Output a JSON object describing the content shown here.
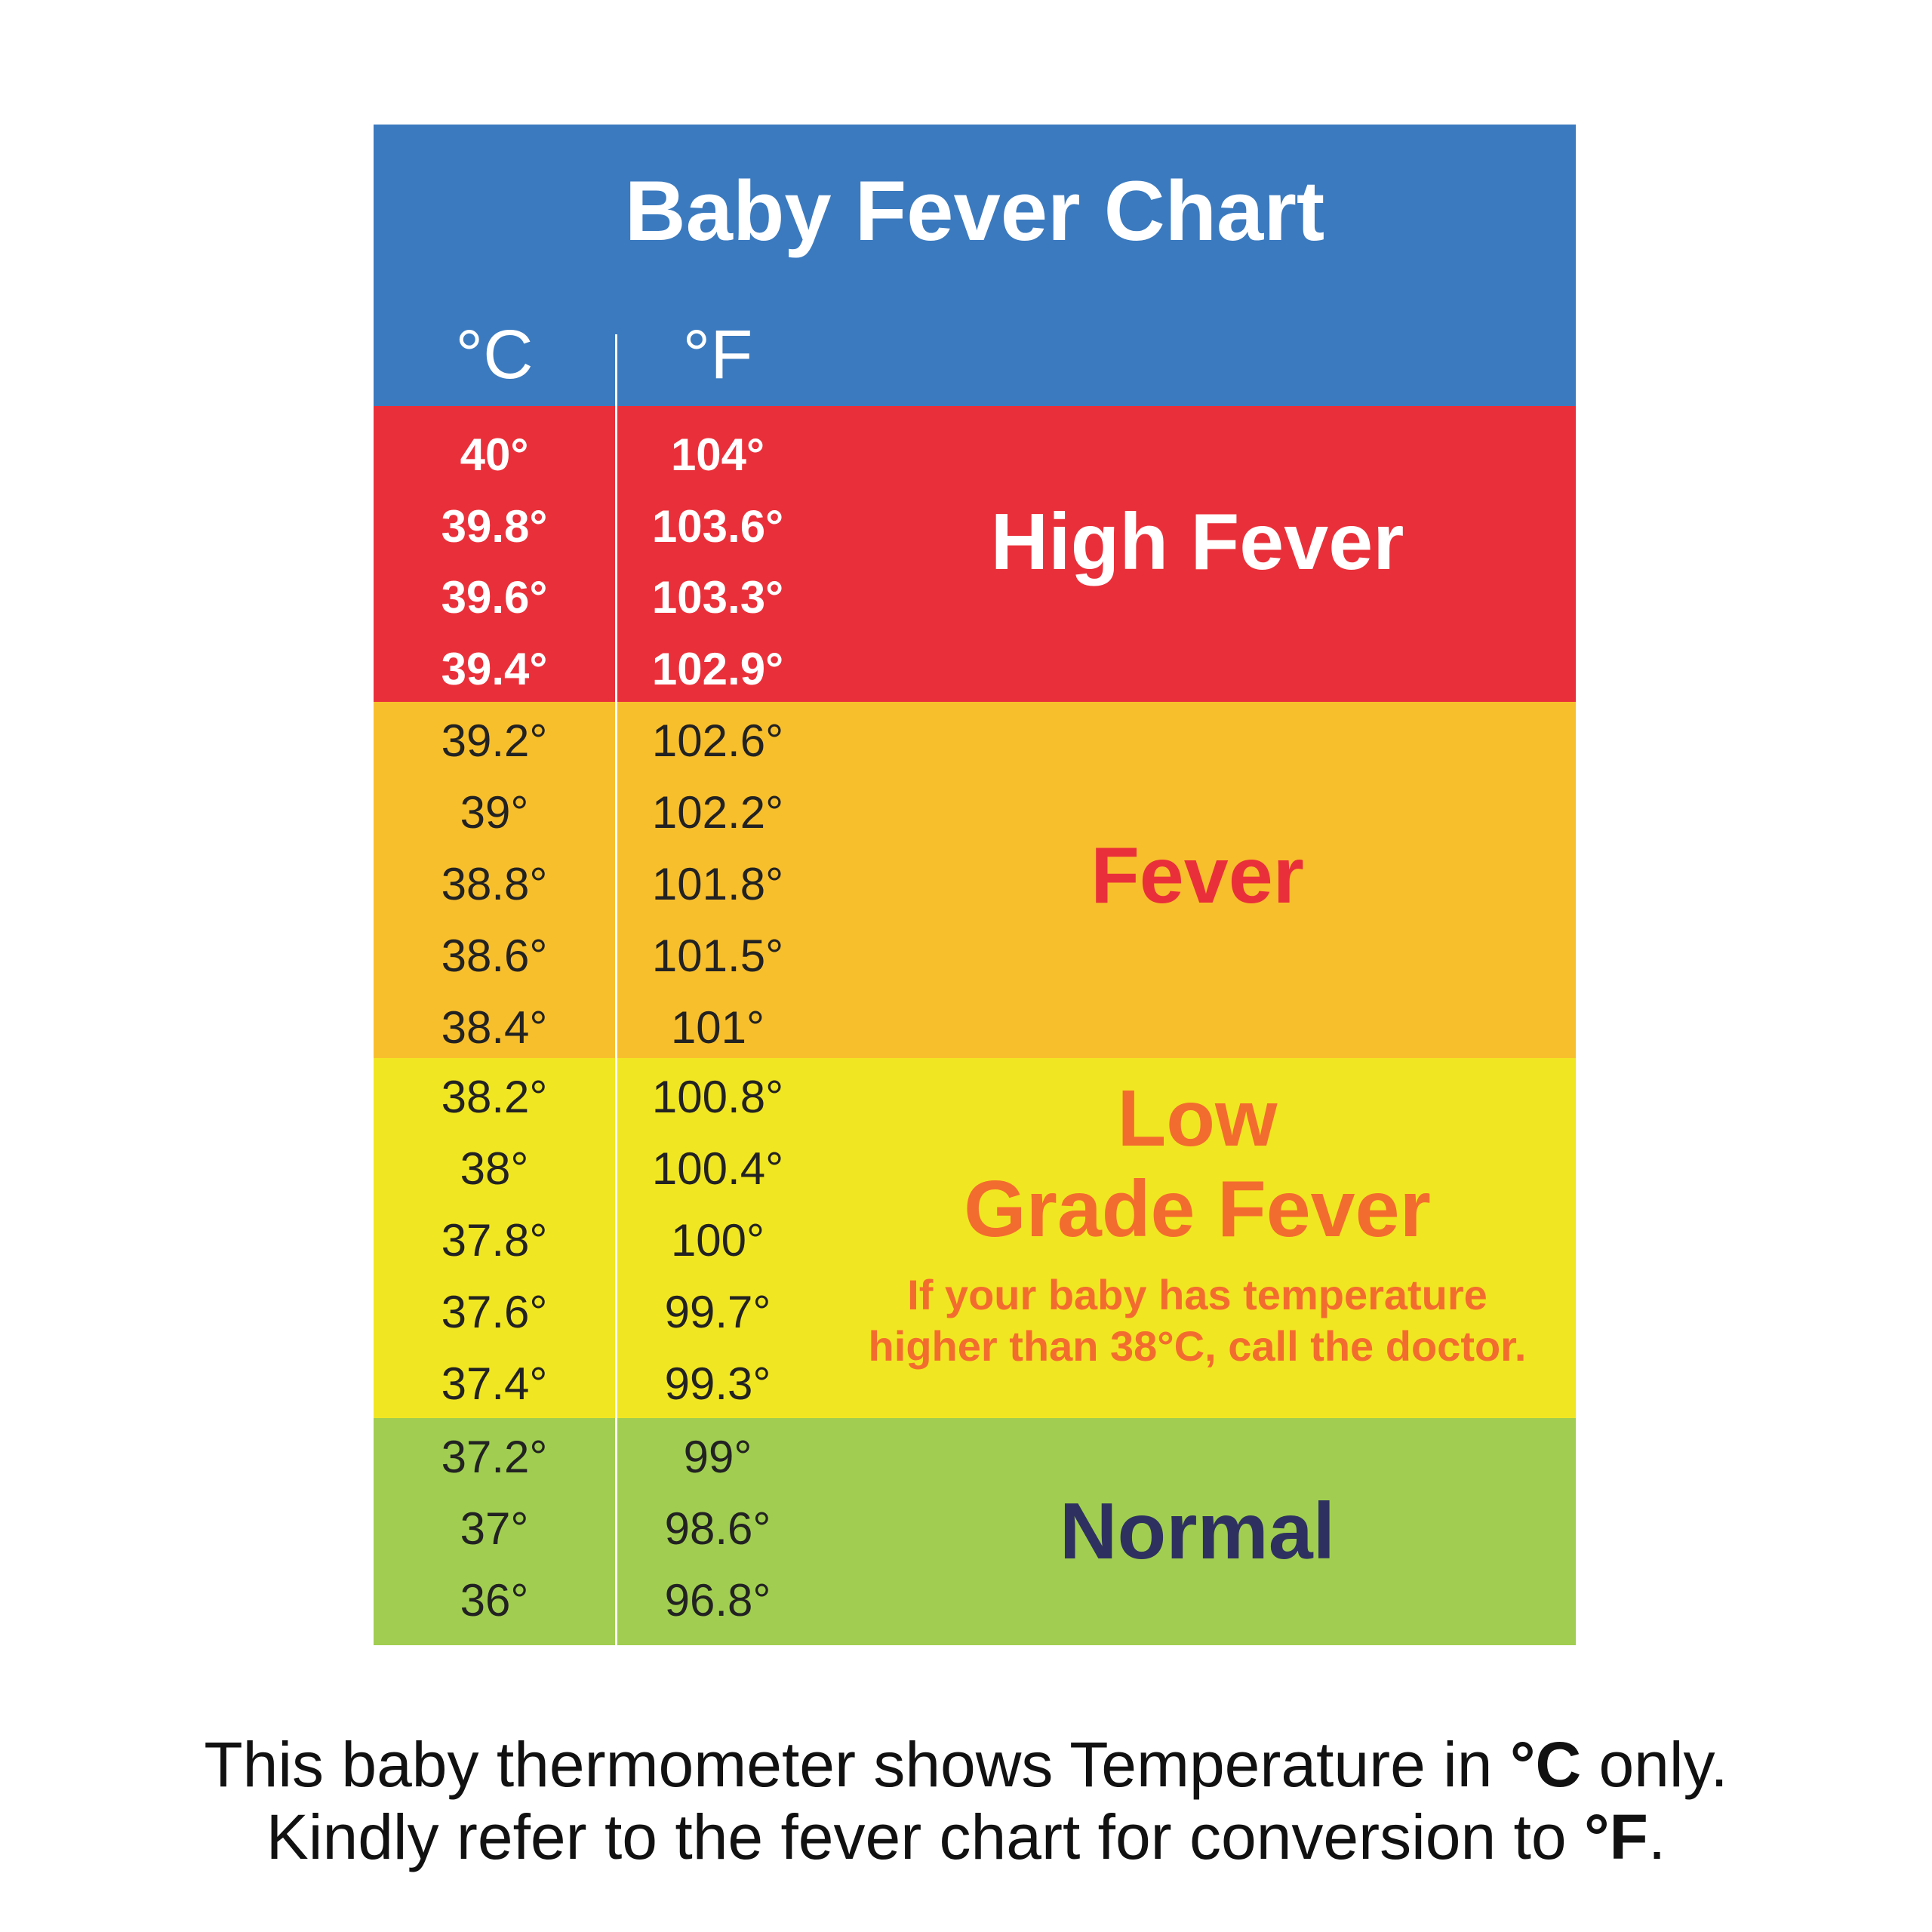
{
  "title": "Baby Fever Chart",
  "columns": {
    "celsius": "°C",
    "fahrenheit": "°F"
  },
  "colors": {
    "header": "#3b7abf",
    "high_fever": "#e9303a",
    "fever": "#f8bf2d",
    "low_grade_fever": "#f1e622",
    "normal": "#a1ce50",
    "fever_text": "#e9303a",
    "low_grade_text": "#f36c2f",
    "normal_text": "#2e3160"
  },
  "bands": [
    {
      "label": "High Fever",
      "rows": [
        {
          "c": "40°",
          "f": "104°"
        },
        {
          "c": "39.8°",
          "f": "103.6°"
        },
        {
          "c": "39.6°",
          "f": "103.3°"
        },
        {
          "c": "39.4°",
          "f": "102.9°"
        }
      ]
    },
    {
      "label": "Fever",
      "rows": [
        {
          "c": "39.2°",
          "f": "102.6°"
        },
        {
          "c": "39°",
          "f": "102.2°"
        },
        {
          "c": "38.8°",
          "f": "101.8°"
        },
        {
          "c": "38.6°",
          "f": "101.5°"
        },
        {
          "c": "38.4°",
          "f": "101°"
        }
      ]
    },
    {
      "label_line1": "Low",
      "label_line2": "Grade Fever",
      "note_line1": "If your baby has temperature",
      "note_line2": "higher than 38°C, call the doctor.",
      "rows": [
        {
          "c": "38.2°",
          "f": "100.8°"
        },
        {
          "c": "38°",
          "f": "100.4°"
        },
        {
          "c": "37.8°",
          "f": "100°"
        },
        {
          "c": "37.6°",
          "f": "99.7°"
        },
        {
          "c": "37.4°",
          "f": "99.3°"
        }
      ]
    },
    {
      "label": "Normal",
      "rows": [
        {
          "c": "37.2°",
          "f": "99°"
        },
        {
          "c": "37°",
          "f": "98.6°"
        },
        {
          "c": "36°",
          "f": "96.8°"
        }
      ]
    }
  ],
  "footer": {
    "line1_a": "This baby thermometer shows Temperature in ",
    "line1_b": "°C",
    "line1_c": " only.",
    "line2_a": "Kindly refer to the fever chart for conversion to ",
    "line2_b": "°F",
    "line2_c": "."
  }
}
